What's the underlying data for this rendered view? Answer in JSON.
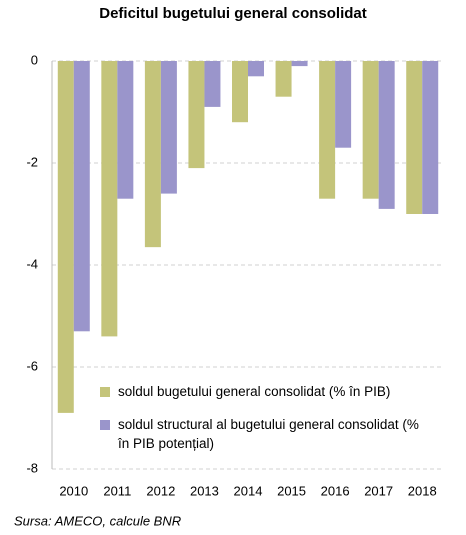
{
  "chart_data": {
    "type": "bar",
    "title": "Deficitul bugetului general consolidat",
    "categories": [
      "2010",
      "2011",
      "2012",
      "2013",
      "2014",
      "2015",
      "2016",
      "2017",
      "2018"
    ],
    "series": [
      {
        "name": "soldul bugetului general consolidat (% în PIB)",
        "color": "#c4c47a",
        "values": [
          -6.9,
          -5.4,
          -3.65,
          -2.1,
          -1.2,
          -0.7,
          -2.7,
          -2.7,
          -3.0
        ]
      },
      {
        "name": "soldul structural al bugetului general consolidat (% în PIB potențial)",
        "color": "#9a95cb",
        "values": [
          -5.3,
          -2.7,
          -2.6,
          -0.9,
          -0.3,
          -0.1,
          -1.7,
          -2.9,
          -3.0
        ]
      }
    ],
    "ylim": [
      -8,
      0
    ],
    "yticks": [
      0,
      -2,
      -4,
      -6,
      -8
    ],
    "grid": true,
    "legend": "lower right",
    "source": "Sursa: AMECO, calcule BNR"
  }
}
